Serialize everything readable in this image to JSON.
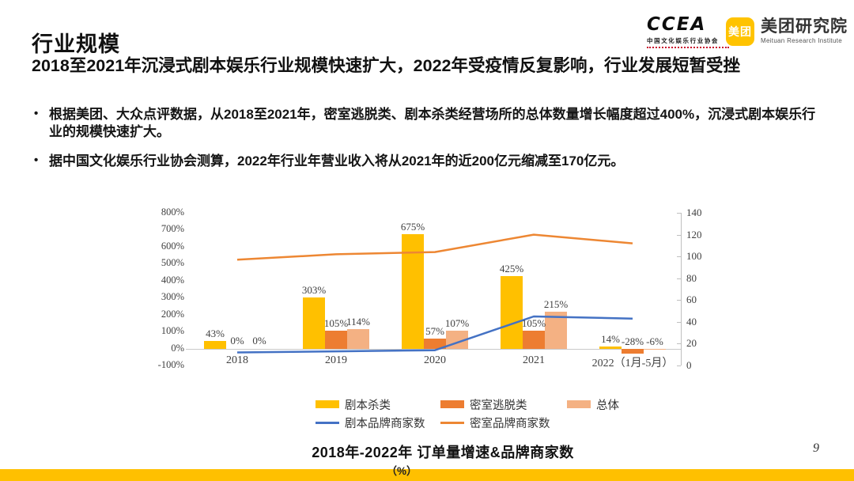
{
  "page": {
    "number": "9",
    "footer_unit": "（%）"
  },
  "header": {
    "title": "行业规模",
    "subtitle": "2018至2021年沉浸式剧本娱乐行业规模快速扩大，2022年受疫情反复影响，行业发展短暂受挫"
  },
  "logos": {
    "ccea": {
      "text": "CCEA",
      "subtext": "中国文化娱乐行业协会"
    },
    "meituan": {
      "badge": "美团",
      "name": "美团研究院",
      "subtext": "Meituan Research Institute"
    }
  },
  "bullets": [
    "根据美团、大众点评数据，从2018至2021年，密室逃脱类、剧本杀类经营场所的总体数量增长幅度超过400%，沉浸式剧本娱乐行业的规模快速扩大。",
    "据中国文化娱乐行业协会测算，2022年行业年营业收入将从2021年的近200亿元缩减至170亿元。"
  ],
  "chart_data": {
    "type": "combo-bar-line",
    "title": "2018年-2022年 订单量增速&品牌商家数",
    "categories": [
      "2018",
      "2019",
      "2020",
      "2021",
      "2022（1月-5月）"
    ],
    "left_axis": {
      "min": -100,
      "max": 800,
      "step": 100,
      "suffix": "%"
    },
    "right_axis": {
      "min": 0,
      "max": 140,
      "step": 20,
      "suffix": ""
    },
    "grid": false,
    "legend_position": "bottom",
    "bar_series": [
      {
        "name": "剧本杀类",
        "color": "#FFC000",
        "axis": "left",
        "values_pct": [
          43,
          303,
          675,
          425,
          14
        ]
      },
      {
        "name": "密室逃脱类",
        "color": "#ED7D31",
        "axis": "left",
        "values_pct": [
          0,
          105,
          57,
          105,
          -28
        ]
      },
      {
        "name": "总体",
        "color": "#F4B183",
        "axis": "left",
        "values_pct": [
          0,
          114,
          107,
          215,
          -6
        ]
      }
    ],
    "line_series": [
      {
        "name": "剧本品牌商家数",
        "color": "#4472C4",
        "axis": "right",
        "values": [
          12,
          13,
          14,
          45,
          43
        ]
      },
      {
        "name": "密室品牌商家数",
        "color": "#ED8733",
        "axis": "right",
        "values": [
          97,
          102,
          104,
          120,
          112
        ]
      }
    ]
  }
}
